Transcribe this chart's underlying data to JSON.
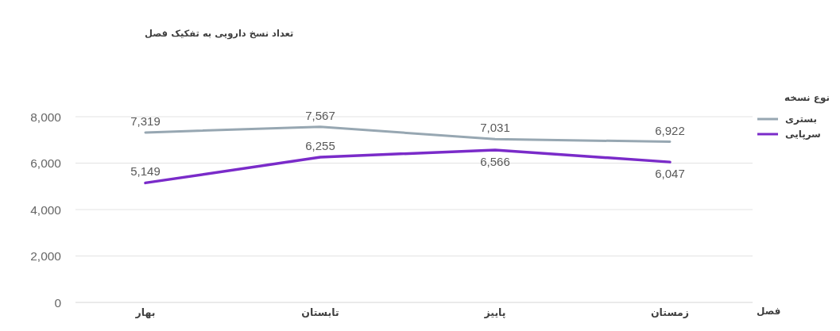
{
  "chart_data": {
    "type": "line",
    "title": "تعداد نسخ دارویی به تفکیک فصل",
    "xlabel": "فصل",
    "legend_title": "نوع نسخه",
    "categories": [
      "بهار",
      "تابستان",
      "پاییز",
      "زمستان"
    ],
    "series": [
      {
        "name": "بستری",
        "color": "#97a7b2",
        "values": [
          7319,
          7567,
          7031,
          6922
        ],
        "value_labels": [
          "7,319",
          "7,567",
          "7,031",
          "6,922"
        ]
      },
      {
        "name": "سرپایی",
        "color": "#7a2bc9",
        "values": [
          5149,
          6255,
          6566,
          6047
        ],
        "value_labels": [
          "5,149",
          "6,255",
          "6,566",
          "6,047"
        ]
      }
    ],
    "ylim": [
      0,
      8000
    ],
    "yticks": [
      0,
      {
        "value": 2000,
        "label": "2,000"
      },
      {
        "value": 4000,
        "label": "4,000"
      },
      {
        "value": 6000,
        "label": "6,000"
      },
      {
        "value": 8000,
        "label": "8,000"
      }
    ],
    "grid": "y",
    "legend": "right",
    "marker": "none",
    "line_style": "solid"
  }
}
